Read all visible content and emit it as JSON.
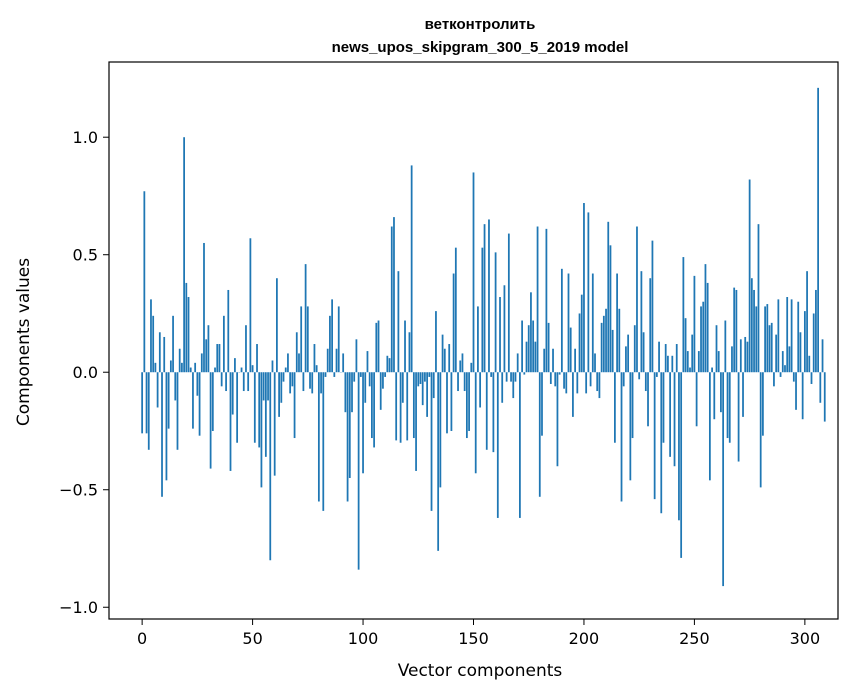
{
  "chart_data": {
    "type": "bar",
    "title_line1": "ветконтролить",
    "title_line2": "news_upos_skipgram_300_5_2019 model",
    "xlabel": "Vector components",
    "ylabel": "Components values",
    "xlim": [
      -15,
      315
    ],
    "ylim": [
      -1.05,
      1.32
    ],
    "x_ticks": [
      0,
      50,
      100,
      150,
      200,
      250,
      300
    ],
    "x_tick_labels": [
      "0",
      "50",
      "100",
      "150",
      "200",
      "250",
      "300"
    ],
    "y_ticks": [
      -1.0,
      -0.5,
      0.0,
      0.5,
      1.0
    ],
    "y_tick_labels": [
      "−1.0",
      "−0.5",
      "0.0",
      "0.5",
      "1.0"
    ],
    "bar_color": "#1f77b4",
    "x_start": 0,
    "values": [
      -0.26,
      0.77,
      -0.26,
      -0.33,
      0.31,
      0.24,
      0.04,
      -0.15,
      0.17,
      -0.53,
      0.15,
      -0.46,
      -0.24,
      0.05,
      0.24,
      -0.12,
      -0.33,
      0.1,
      0.04,
      1.0,
      0.38,
      0.32,
      0.02,
      -0.24,
      0.04,
      -0.1,
      -0.27,
      0.08,
      0.55,
      0.14,
      0.2,
      -0.41,
      -0.25,
      0.02,
      0.12,
      0.12,
      -0.06,
      0.24,
      -0.08,
      0.35,
      -0.42,
      -0.18,
      0.06,
      -0.3,
      0.0,
      0.02,
      -0.08,
      0.2,
      -0.08,
      0.57,
      0.03,
      -0.3,
      0.12,
      -0.32,
      -0.49,
      -0.12,
      -0.36,
      -0.12,
      -0.8,
      0.05,
      -0.44,
      0.4,
      -0.19,
      -0.13,
      -0.04,
      0.02,
      0.08,
      -0.09,
      -0.06,
      -0.28,
      0.17,
      0.08,
      0.28,
      -0.08,
      0.46,
      0.28,
      -0.07,
      -0.09,
      0.12,
      0.03,
      -0.55,
      -0.09,
      -0.59,
      -0.02,
      0.1,
      0.24,
      0.31,
      -0.02,
      0.1,
      0.28,
      0.0,
      0.08,
      -0.17,
      -0.55,
      -0.45,
      -0.17,
      -0.04,
      0.14,
      -0.84,
      -0.02,
      -0.43,
      -0.13,
      0.09,
      -0.06,
      -0.28,
      -0.32,
      0.21,
      0.22,
      -0.16,
      -0.07,
      -0.02,
      0.07,
      0.06,
      0.62,
      0.66,
      -0.29,
      0.43,
      -0.3,
      -0.13,
      0.22,
      -0.29,
      0.17,
      0.88,
      -0.28,
      -0.42,
      -0.06,
      -0.05,
      -0.14,
      -0.04,
      -0.19,
      -0.02,
      -0.59,
      -0.11,
      0.26,
      -0.76,
      -0.49,
      0.16,
      0.1,
      -0.26,
      0.12,
      -0.25,
      0.42,
      0.53,
      -0.08,
      0.05,
      0.08,
      -0.08,
      -0.28,
      -0.25,
      0.04,
      0.85,
      -0.43,
      0.28,
      -0.15,
      0.53,
      0.63,
      -0.33,
      0.65,
      -0.02,
      -0.34,
      0.51,
      -0.62,
      0.32,
      -0.13,
      0.37,
      -0.04,
      0.59,
      -0.04,
      -0.11,
      -0.04,
      0.08,
      -0.62,
      0.22,
      -0.01,
      0.13,
      0.2,
      0.34,
      0.22,
      0.13,
      0.62,
      -0.53,
      -0.27,
      0.1,
      0.61,
      0.21,
      -0.05,
      0.1,
      -0.06,
      -0.4,
      -0.01,
      0.44,
      -0.07,
      -0.09,
      0.42,
      0.19,
      -0.19,
      0.1,
      -0.09,
      0.25,
      0.33,
      0.72,
      -0.09,
      0.68,
      -0.06,
      0.42,
      0.08,
      -0.08,
      -0.11,
      0.21,
      0.24,
      0.27,
      0.64,
      0.54,
      0.18,
      -0.3,
      0.42,
      0.27,
      -0.55,
      -0.06,
      0.11,
      0.16,
      -0.46,
      -0.28,
      0.2,
      0.62,
      -0.03,
      0.43,
      0.17,
      -0.08,
      -0.23,
      0.4,
      0.56,
      -0.54,
      -0.02,
      0.13,
      -0.6,
      -0.3,
      0.12,
      0.07,
      -0.36,
      0.07,
      -0.4,
      0.12,
      -0.63,
      -0.79,
      0.49,
      0.23,
      0.09,
      0.02,
      0.16,
      0.41,
      -0.23,
      0.09,
      0.28,
      0.3,
      0.46,
      0.38,
      -0.46,
      0.02,
      -0.2,
      0.2,
      0.09,
      -0.17,
      -0.91,
      0.22,
      -0.28,
      -0.3,
      0.11,
      0.36,
      0.35,
      -0.38,
      0.14,
      -0.19,
      0.15,
      0.13,
      0.82,
      0.4,
      0.35,
      0.28,
      0.63,
      -0.49,
      -0.27,
      0.28,
      0.29,
      0.2,
      0.21,
      -0.06,
      0.16,
      0.31,
      -0.02,
      0.09,
      0.03,
      0.32,
      0.11,
      0.31,
      -0.04,
      -0.16,
      0.3,
      0.17,
      -0.2,
      0.26,
      0.43,
      0.07,
      -0.05,
      0.25,
      0.35,
      1.21,
      -0.13,
      0.14,
      -0.21
    ]
  }
}
